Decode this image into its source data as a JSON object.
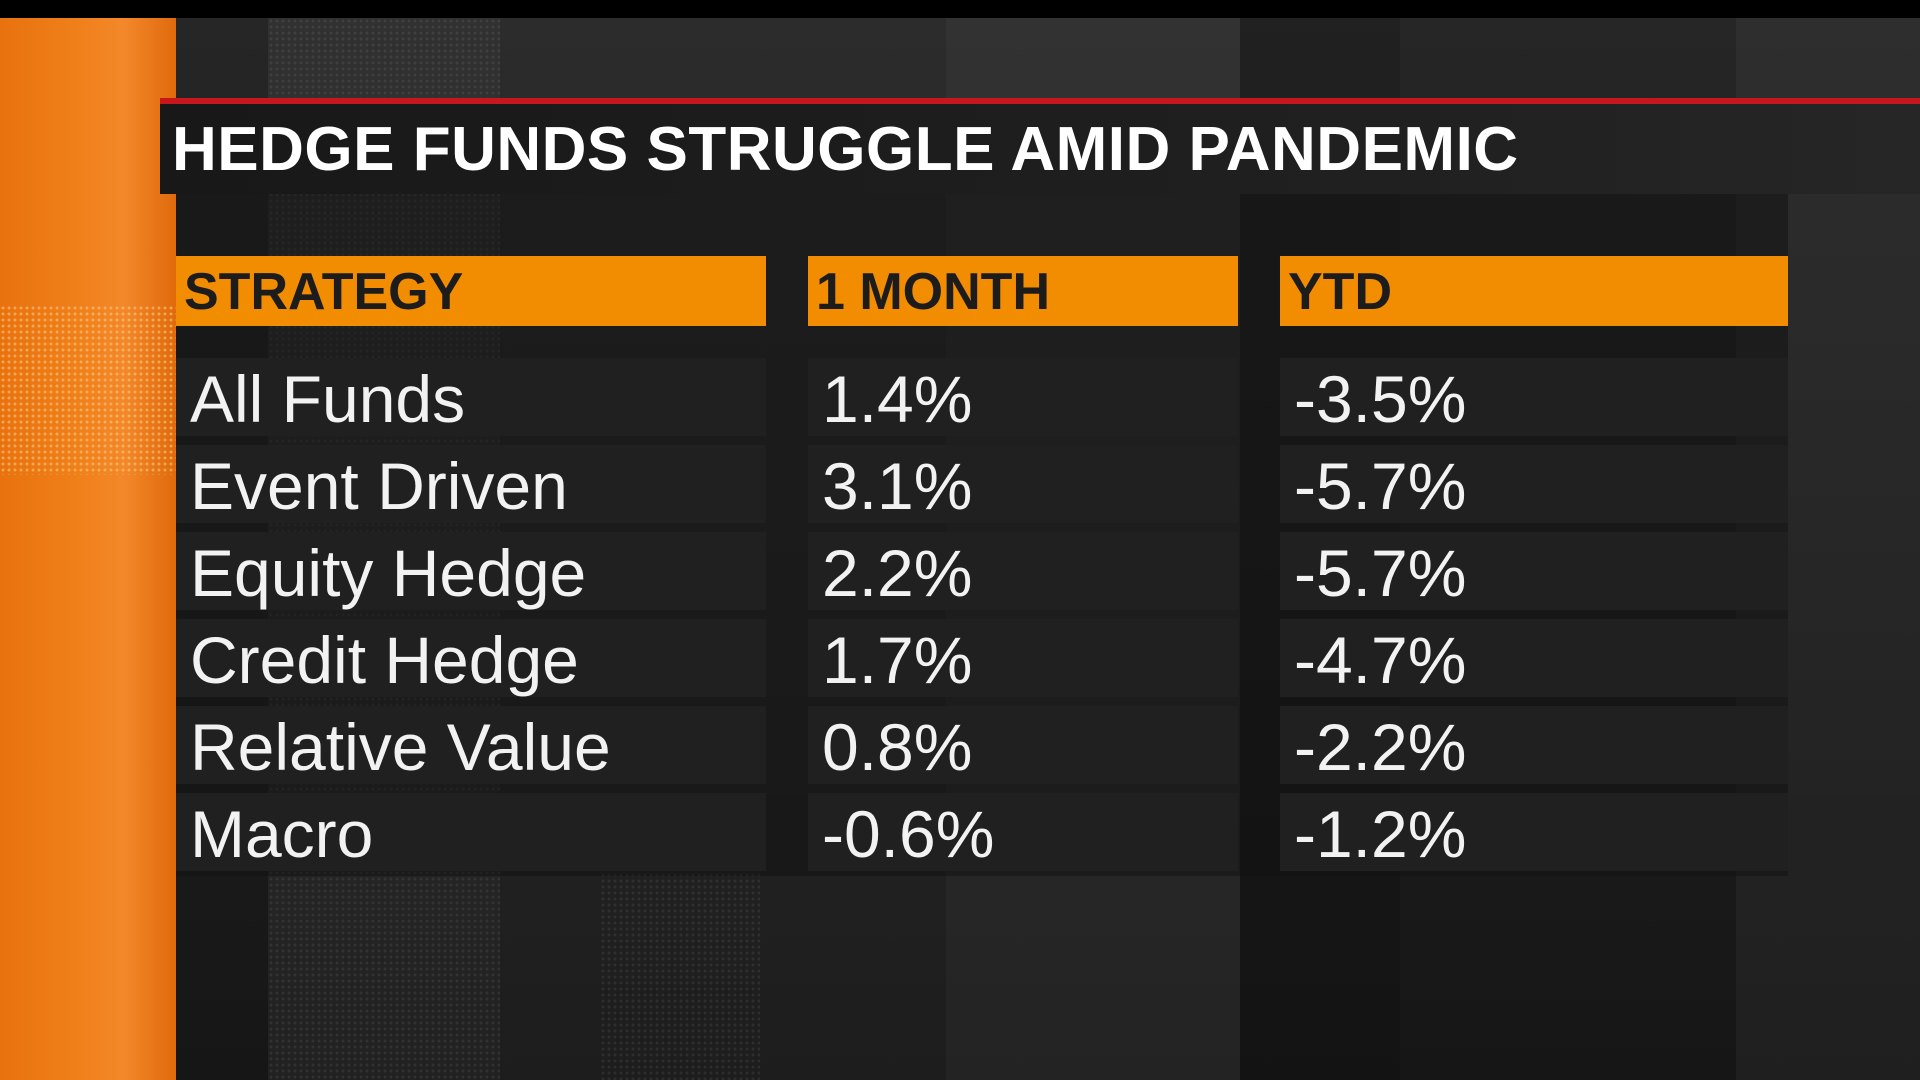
{
  "title": "HEDGE FUNDS STRUGGLE AMID PANDEMIC",
  "colors": {
    "accent_orange": "#f28c00",
    "title_rule_red": "#c8161d",
    "text_white": "#f2f2f2",
    "header_text": "#1c1c1c"
  },
  "chart_data": {
    "type": "table",
    "title": "HEDGE FUNDS STRUGGLE AMID PANDEMIC",
    "columns": [
      "STRATEGY",
      "1 MONTH",
      "YTD"
    ],
    "rows": [
      [
        "All Funds",
        "1.4%",
        "-3.5%"
      ],
      [
        "Event Driven",
        "3.1%",
        "-5.7%"
      ],
      [
        "Equity Hedge",
        "2.2%",
        "-5.7%"
      ],
      [
        "Credit Hedge",
        "1.7%",
        "-4.7%"
      ],
      [
        "Relative Value",
        "0.8%",
        "-2.2%"
      ],
      [
        "Macro",
        "-0.6%",
        "-1.2%"
      ]
    ]
  }
}
